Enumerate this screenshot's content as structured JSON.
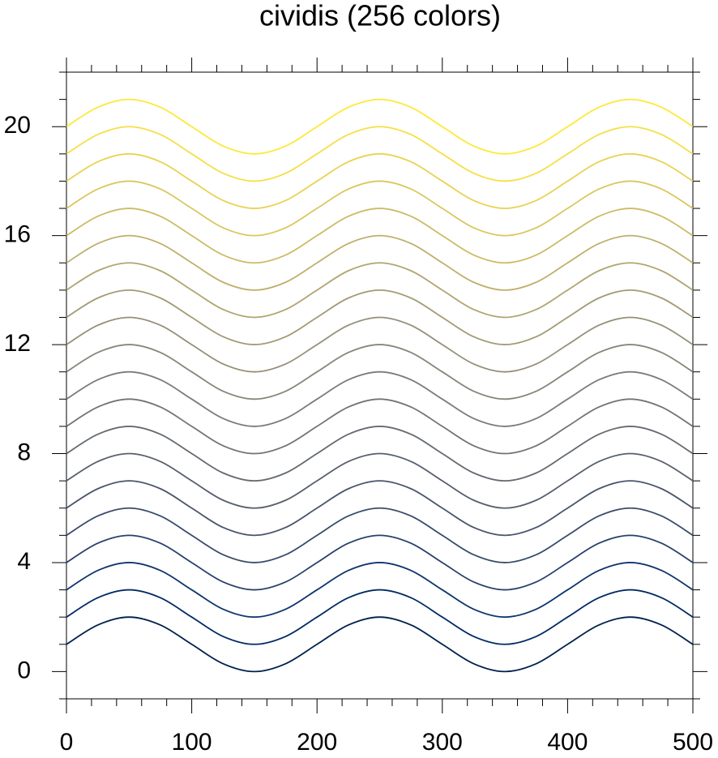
{
  "chart_data": {
    "type": "line",
    "title": "cividis (256 colors)",
    "x": [
      0,
      25,
      50,
      75,
      100,
      125,
      150,
      175,
      200,
      225,
      250,
      275,
      300,
      325,
      350,
      375,
      400,
      425,
      450,
      475,
      500
    ],
    "xlim": [
      0,
      500
    ],
    "ylim": [
      -1,
      22
    ],
    "xticks": [
      0,
      100,
      200,
      300,
      400,
      500
    ],
    "yticks": [
      0,
      4,
      8,
      12,
      16,
      20
    ],
    "xminorticks": [
      20,
      40,
      60,
      80,
      120,
      140,
      160,
      180,
      220,
      240,
      260,
      280,
      320,
      340,
      360,
      380,
      420,
      440,
      460,
      480
    ],
    "yminorticks": [
      -1,
      1,
      2,
      3,
      5,
      6,
      7,
      9,
      10,
      11,
      13,
      14,
      15,
      17,
      18,
      19,
      21,
      22
    ],
    "series": [
      {
        "color": "#00204d",
        "values": [
          1,
          1.71,
          2,
          1.71,
          1,
          0.29,
          0,
          0.29,
          1,
          1.71,
          2,
          1.71,
          1,
          0.29,
          0,
          0.29,
          1,
          1.71,
          2,
          1.71,
          1
        ]
      },
      {
        "color": "#002a64",
        "values": [
          2,
          2.71,
          3,
          2.71,
          2,
          1.29,
          1,
          1.29,
          2,
          2.71,
          3,
          2.71,
          2,
          1.29,
          1,
          1.29,
          2,
          2.71,
          3,
          2.71,
          2
        ]
      },
      {
        "color": "#0e356d",
        "values": [
          3,
          3.71,
          4,
          3.71,
          3,
          2.29,
          2,
          2.29,
          3,
          3.71,
          4,
          3.71,
          3,
          2.29,
          2,
          2.29,
          3,
          3.71,
          4,
          3.71,
          3
        ]
      },
      {
        "color": "#27406c",
        "values": [
          4,
          4.71,
          5,
          4.71,
          4,
          3.29,
          3,
          3.29,
          4,
          4.71,
          5,
          4.71,
          4,
          3.29,
          3,
          3.29,
          4,
          4.71,
          5,
          4.71,
          4
        ]
      },
      {
        "color": "#394b6b",
        "values": [
          5,
          5.71,
          6,
          5.71,
          5,
          4.29,
          4,
          4.29,
          5,
          5.71,
          6,
          5.71,
          5,
          4.29,
          4,
          4.29,
          5,
          5.71,
          6,
          5.71,
          5
        ]
      },
      {
        "color": "#49556b",
        "values": [
          6,
          6.71,
          7,
          6.71,
          6,
          5.29,
          5,
          5.29,
          6,
          6.71,
          7,
          6.71,
          6,
          5.29,
          5,
          5.29,
          6,
          6.71,
          7,
          6.71,
          6
        ]
      },
      {
        "color": "#575f6d",
        "values": [
          7,
          7.71,
          8,
          7.71,
          7,
          6.29,
          6,
          6.29,
          7,
          7.71,
          8,
          7.71,
          7,
          6.29,
          6,
          6.29,
          7,
          7.71,
          8,
          7.71,
          7
        ]
      },
      {
        "color": "#646a70",
        "values": [
          8,
          8.71,
          9,
          8.71,
          8,
          7.29,
          7,
          7.29,
          8,
          8.71,
          9,
          8.71,
          8,
          7.29,
          7,
          7.29,
          8,
          8.71,
          9,
          8.71,
          8
        ]
      },
      {
        "color": "#717474",
        "values": [
          9,
          9.71,
          10,
          9.71,
          9,
          8.29,
          8,
          8.29,
          9,
          9.71,
          10,
          9.71,
          9,
          8.29,
          8,
          8.29,
          9,
          9.71,
          10,
          9.71,
          9
        ]
      },
      {
        "color": "#7c7b78",
        "values": [
          10,
          10.71,
          11,
          10.71,
          10,
          9.29,
          9,
          9.29,
          10,
          10.71,
          11,
          10.71,
          10,
          9.29,
          9,
          9.29,
          10,
          10.71,
          11,
          10.71,
          10
        ]
      },
      {
        "color": "#888578",
        "values": [
          11,
          11.71,
          12,
          11.71,
          11,
          10.29,
          10,
          10.29,
          11,
          11.71,
          12,
          11.71,
          11,
          10.29,
          10,
          10.29,
          11,
          11.71,
          12,
          11.71,
          11
        ]
      },
      {
        "color": "#958f78",
        "values": [
          12,
          12.71,
          13,
          12.71,
          12,
          11.29,
          11,
          11.29,
          12,
          12.71,
          13,
          12.71,
          12,
          11.29,
          11,
          11.29,
          12,
          12.71,
          13,
          12.71,
          12
        ]
      },
      {
        "color": "#a39a75",
        "values": [
          13,
          13.71,
          14,
          13.71,
          13,
          12.29,
          12,
          12.29,
          13,
          13.71,
          14,
          13.71,
          13,
          12.29,
          12,
          12.29,
          13,
          13.71,
          14,
          13.71,
          13
        ]
      },
      {
        "color": "#b0a571",
        "values": [
          14,
          14.71,
          15,
          14.71,
          14,
          13.29,
          13,
          13.29,
          14,
          14.71,
          15,
          14.71,
          14,
          13.29,
          13,
          13.29,
          14,
          14.71,
          15,
          14.71,
          14
        ]
      },
      {
        "color": "#beb06c",
        "values": [
          15,
          15.71,
          16,
          15.71,
          15,
          14.29,
          14,
          14.29,
          15,
          15.71,
          16,
          15.71,
          15,
          14.29,
          14,
          14.29,
          15,
          15.71,
          16,
          15.71,
          15
        ]
      },
      {
        "color": "#ccbb66",
        "values": [
          16,
          16.71,
          17,
          16.71,
          16,
          15.29,
          15,
          15.29,
          16,
          16.71,
          17,
          16.71,
          16,
          15.29,
          15,
          15.29,
          16,
          16.71,
          17,
          16.71,
          16
        ]
      },
      {
        "color": "#dac75d",
        "values": [
          17,
          17.71,
          18,
          17.71,
          17,
          16.29,
          16,
          16.29,
          17,
          17.71,
          18,
          17.71,
          17,
          16.29,
          16,
          16.29,
          17,
          17.71,
          18,
          17.71,
          17
        ]
      },
      {
        "color": "#e8d352",
        "values": [
          18,
          18.71,
          19,
          18.71,
          18,
          17.29,
          17,
          17.29,
          18,
          18.71,
          19,
          18.71,
          18,
          17.29,
          17,
          17.29,
          18,
          18.71,
          19,
          18.71,
          18
        ]
      },
      {
        "color": "#f6df46",
        "values": [
          19,
          19.71,
          20,
          19.71,
          19,
          18.29,
          18,
          18.29,
          19,
          19.71,
          20,
          19.71,
          19,
          18.29,
          18,
          18.29,
          19,
          19.71,
          20,
          19.71,
          19
        ]
      },
      {
        "color": "#fee838",
        "values": [
          20,
          20.71,
          21,
          20.71,
          20,
          19.29,
          19,
          19.29,
          20,
          20.71,
          21,
          20.71,
          20,
          19.29,
          19,
          19.29,
          20,
          20.71,
          21,
          20.71,
          20
        ]
      }
    ]
  }
}
